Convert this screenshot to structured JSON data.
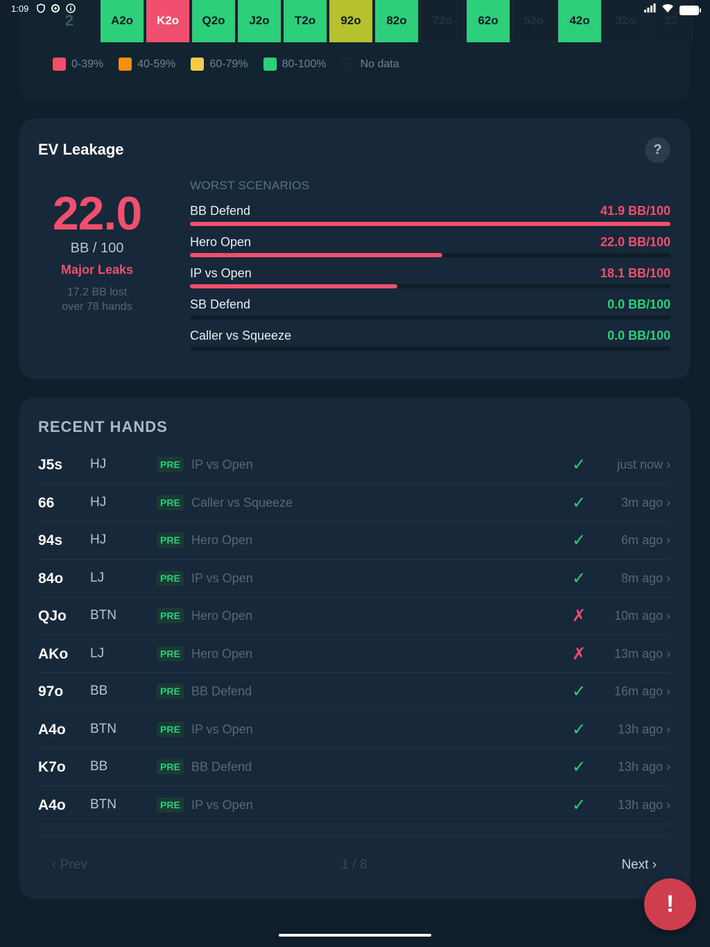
{
  "status_bar": {
    "time": "1:09"
  },
  "matrix": {
    "row_label": "2",
    "cells": [
      {
        "label": "A2o",
        "color": "green"
      },
      {
        "label": "K2o",
        "color": "red"
      },
      {
        "label": "Q2o",
        "color": "green"
      },
      {
        "label": "J2o",
        "color": "green"
      },
      {
        "label": "T2o",
        "color": "green"
      },
      {
        "label": "92o",
        "color": "olive"
      },
      {
        "label": "82o",
        "color": "green"
      },
      {
        "label": "72o",
        "color": "empty"
      },
      {
        "label": "62o",
        "color": "green"
      },
      {
        "label": "52o",
        "color": "empty"
      },
      {
        "label": "42o",
        "color": "green"
      },
      {
        "label": "32o",
        "color": "empty"
      },
      {
        "label": "22",
        "color": "empty"
      }
    ],
    "legend": [
      {
        "label": "0-39%",
        "color": "#f0506e"
      },
      {
        "label": "40-59%",
        "color": "#f5900f"
      },
      {
        "label": "60-79%",
        "color": "#f7c94a"
      },
      {
        "label": "80-100%",
        "color": "#2ecf7a"
      },
      {
        "label": "No data",
        "color": "#132431"
      }
    ]
  },
  "ev_leakage": {
    "title": "EV Leakage",
    "help_label": "?",
    "value": "22.0",
    "unit": "BB / 100",
    "status": "Major Leaks",
    "note_line1": "17.2 BB lost",
    "note_line2": "over 78 hands",
    "scenarios_header": "WORST SCENARIOS",
    "scenarios": [
      {
        "name": "BB Defend",
        "value": "41.9 BB/100",
        "fill": 1.0,
        "color": "#f0506e"
      },
      {
        "name": "Hero Open",
        "value": "22.0 BB/100",
        "fill": 0.525,
        "color": "#f0506e"
      },
      {
        "name": "IP vs Open",
        "value": "18.1 BB/100",
        "fill": 0.432,
        "color": "#f0506e"
      },
      {
        "name": "SB Defend",
        "value": "0.0 BB/100",
        "fill": 0,
        "color": "#2ecf7a"
      },
      {
        "name": "Caller vs Squeeze",
        "value": "0.0 BB/100",
        "fill": 0,
        "color": "#2ecf7a"
      }
    ]
  },
  "recent_hands": {
    "title": "RECENT HANDS",
    "rows": [
      {
        "hand": "J5s",
        "pos": "HJ",
        "street": "PRE",
        "scenario": "IP vs Open",
        "result": "✓",
        "ok": true,
        "time": "just now ›"
      },
      {
        "hand": "66",
        "pos": "HJ",
        "street": "PRE",
        "scenario": "Caller vs Squeeze",
        "result": "✓",
        "ok": true,
        "time": "3m ago ›"
      },
      {
        "hand": "94s",
        "pos": "HJ",
        "street": "PRE",
        "scenario": "Hero Open",
        "result": "✓",
        "ok": true,
        "time": "6m ago ›"
      },
      {
        "hand": "84o",
        "pos": "LJ",
        "street": "PRE",
        "scenario": "IP vs Open",
        "result": "✓",
        "ok": true,
        "time": "8m ago ›"
      },
      {
        "hand": "QJo",
        "pos": "BTN",
        "street": "PRE",
        "scenario": "Hero Open",
        "result": "✗",
        "ok": false,
        "time": "10m ago ›"
      },
      {
        "hand": "AKo",
        "pos": "LJ",
        "street": "PRE",
        "scenario": "Hero Open",
        "result": "✗",
        "ok": false,
        "time": "13m ago ›"
      },
      {
        "hand": "97o",
        "pos": "BB",
        "street": "PRE",
        "scenario": "BB Defend",
        "result": "✓",
        "ok": true,
        "time": "16m ago ›"
      },
      {
        "hand": "A4o",
        "pos": "BTN",
        "street": "PRE",
        "scenario": "IP vs Open",
        "result": "✓",
        "ok": true,
        "time": "13h ago ›"
      },
      {
        "hand": "K7o",
        "pos": "BB",
        "street": "PRE",
        "scenario": "BB Defend",
        "result": "✓",
        "ok": true,
        "time": "13h ago ›"
      },
      {
        "hand": "A4o",
        "pos": "BTN",
        "street": "PRE",
        "scenario": "IP vs Open",
        "result": "✓",
        "ok": true,
        "time": "13h ago ›"
      }
    ],
    "pager": {
      "prev": "‹ Prev",
      "page": "1 / 8",
      "next": "Next ›"
    }
  },
  "fab_label": "!"
}
